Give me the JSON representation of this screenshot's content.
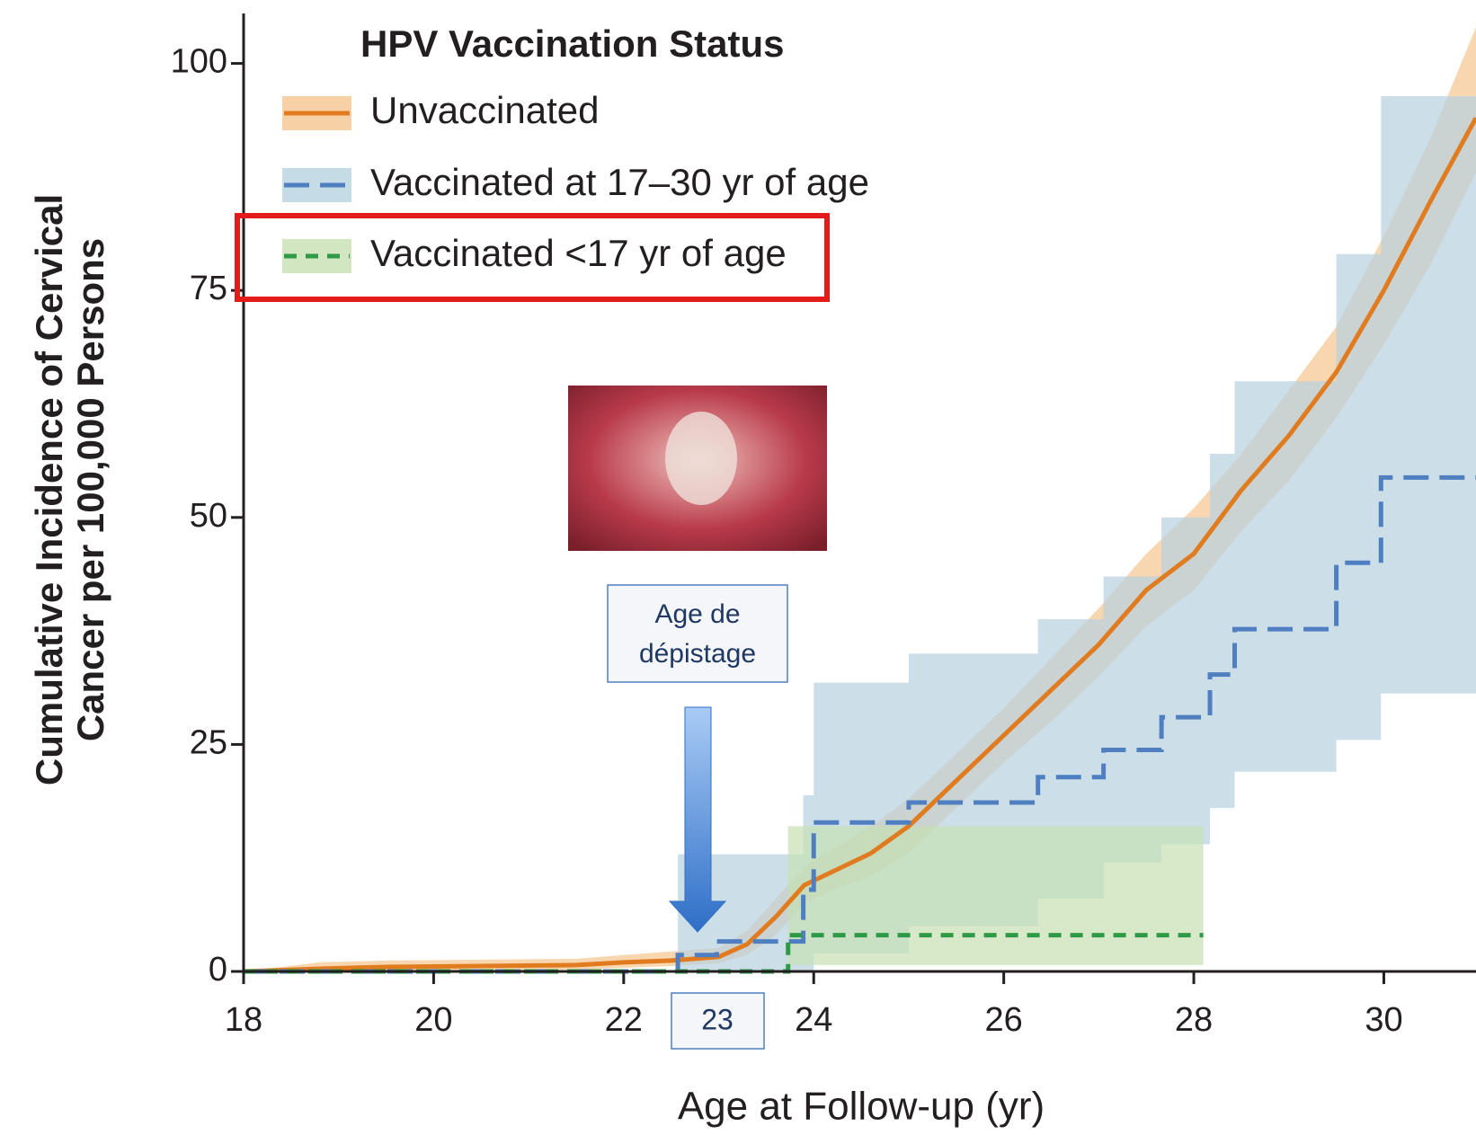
{
  "chart_data": {
    "type": "step",
    "legend_title": "HPV Vaccination Status",
    "ylabel": [
      "Cumulative Incidence of Cervical",
      "Cancer per 100,000 Persons"
    ],
    "xlabel": "Age at Follow-up (yr)",
    "xlim": [
      18,
      30.97
    ],
    "ylim": [
      0,
      105.5
    ],
    "xticks": [
      18,
      20,
      22,
      24,
      26,
      28,
      30
    ],
    "yticks": [
      0,
      25,
      50,
      75,
      100
    ],
    "legend": "upper left",
    "series": [
      {
        "name": "Unvaccinated",
        "color": "#e07b20",
        "band_color": "#f5c58f",
        "style": "solid",
        "step": false,
        "x": [
          18,
          18.8,
          19.5,
          20.5,
          21.5,
          22,
          22.5,
          23,
          23.3,
          23.6,
          23.9,
          24.2,
          24.6,
          25,
          25.5,
          26,
          26.5,
          27,
          27.5,
          28,
          28.5,
          29,
          29.5,
          30,
          30.5,
          30.97
        ],
        "values": [
          0,
          0.3,
          0.5,
          0.6,
          0.7,
          1,
          1.2,
          1.6,
          3,
          6,
          9.5,
          11,
          13,
          16,
          21,
          26,
          31,
          36,
          42,
          46,
          53,
          59,
          66,
          75,
          85,
          94
        ],
        "upper": [
          0,
          1,
          1.2,
          1.3,
          1.4,
          1.8,
          2.2,
          2.6,
          4.5,
          8,
          11.5,
          13.5,
          16,
          19,
          24,
          29,
          34.5,
          40,
          46,
          51,
          57,
          64,
          71,
          81,
          92,
          104
        ],
        "lower": [
          0,
          0,
          0,
          0.1,
          0.2,
          0.4,
          0.6,
          0.9,
          1.8,
          4,
          7.5,
          9,
          10.5,
          13,
          18,
          23,
          27.5,
          32.5,
          38,
          42,
          48.5,
          54,
          61,
          69,
          78,
          88
        ]
      },
      {
        "name": "Vaccinated at 17–30 yr of age",
        "color": "#4f7fc0",
        "band_color": "#b7d2e0",
        "style": "dashed",
        "step": true,
        "x": [
          18,
          22.57,
          22.98,
          23.89,
          24.0,
          25.0,
          26.36,
          27.05,
          27.66,
          28.17,
          28.43,
          29.5,
          29.97,
          30.97
        ],
        "values": [
          0,
          1.8,
          3.3,
          9,
          16.4,
          18.6,
          21.4,
          24.4,
          28,
          32.7,
          37.7,
          45,
          54.4,
          54.4
        ],
        "upper": [
          0,
          12.9,
          12.9,
          19.4,
          31.8,
          35,
          38.8,
          43.5,
          50,
          57,
          65,
          79,
          96.4,
          96.4
        ],
        "lower": [
          0,
          0,
          0,
          0,
          2,
          5,
          8,
          12,
          14,
          18,
          22,
          25.5,
          30.6,
          30.6
        ]
      },
      {
        "name": "Vaccinated <17 yr of age",
        "color": "#2e9a47",
        "band_color": "#c6e0b2",
        "style": "dotted",
        "step": true,
        "x": [
          18,
          23.73,
          28.1
        ],
        "values": [
          0,
          4,
          4
        ],
        "upper": [
          0,
          16,
          16
        ],
        "lower": [
          0,
          0.7,
          0.7
        ]
      }
    ],
    "annotations": {
      "box_text": [
        "Age de",
        "dépistage"
      ],
      "marker_label": "23"
    }
  }
}
